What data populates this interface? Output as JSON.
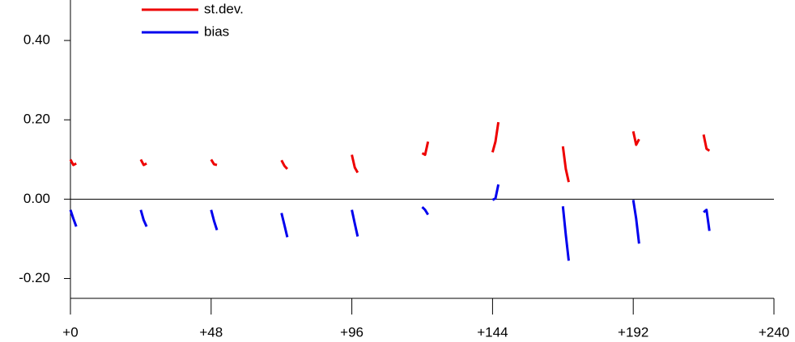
{
  "chart_data": {
    "type": "line",
    "x": [
      0,
      1,
      2,
      12,
      24,
      25,
      26,
      36,
      48,
      49,
      50,
      60,
      72,
      73,
      74,
      84,
      96,
      97,
      98,
      108,
      120,
      121,
      122,
      132,
      144,
      145,
      146,
      156,
      168,
      169,
      170,
      180,
      192,
      193,
      194,
      204,
      216,
      217,
      218
    ],
    "series": [
      {
        "name": "st.dev.",
        "color": "#ee0000",
        "values": [
          0.1,
          0.086,
          0.09,
          null,
          0.1,
          0.086,
          0.09,
          null,
          0.1,
          0.088,
          0.086,
          null,
          0.098,
          0.084,
          0.076,
          null,
          0.112,
          0.08,
          0.067,
          null,
          0.116,
          0.112,
          0.145,
          null,
          0.118,
          0.145,
          0.194,
          null,
          0.133,
          0.076,
          0.043,
          null,
          0.171,
          0.137,
          0.151,
          null,
          0.163,
          0.127,
          0.122
        ]
      },
      {
        "name": "bias",
        "color": "#0000ee",
        "values": [
          -0.027,
          -0.049,
          -0.069,
          null,
          -0.027,
          -0.053,
          -0.069,
          null,
          -0.027,
          -0.055,
          -0.078,
          null,
          -0.035,
          -0.065,
          -0.096,
          null,
          -0.027,
          -0.061,
          -0.094,
          null,
          -0.02,
          -0.027,
          -0.039,
          null,
          -0.002,
          0.002,
          0.037,
          null,
          -0.018,
          -0.09,
          -0.155,
          null,
          -0.002,
          -0.049,
          -0.112,
          null,
          -0.033,
          -0.027,
          -0.08
        ]
      }
    ],
    "xlim": [
      0,
      240
    ],
    "xticks": [
      {
        "value": 0,
        "label": "+0"
      },
      {
        "value": 48,
        "label": "+48"
      },
      {
        "value": 96,
        "label": "+96"
      },
      {
        "value": 144,
        "label": "+144"
      },
      {
        "value": 192,
        "label": "+192"
      },
      {
        "value": 240,
        "label": "+240"
      }
    ],
    "ylim": [
      -0.25,
      0.5
    ],
    "yticks": [
      {
        "value": -0.2,
        "label": "-0.20"
      },
      {
        "value": 0,
        "label": "0.00"
      },
      {
        "value": 0.2,
        "label": "0.20"
      },
      {
        "value": 0.4,
        "label": "0.40"
      }
    ]
  }
}
